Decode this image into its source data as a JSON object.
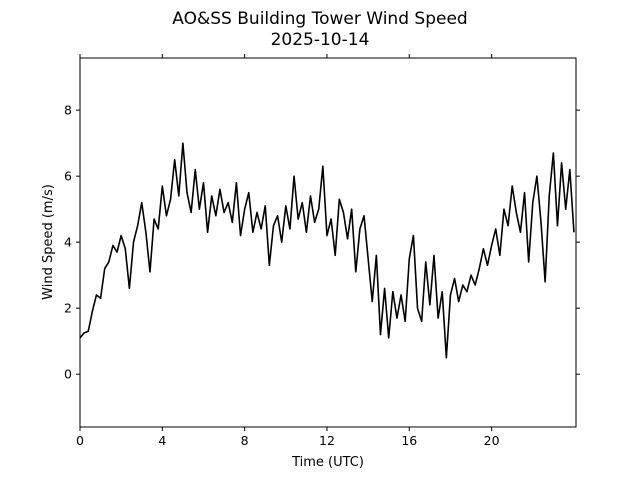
{
  "chart_data": {
    "type": "line",
    "title": "AO&SS Building Tower Wind Speed",
    "subtitle": "2025-10-14",
    "x_label": "Time (UTC)",
    "y_label": "Wind Speed (m/s)",
    "xlim": [
      0,
      24.1
    ],
    "xticks": [
      0,
      4,
      8,
      12,
      16,
      20
    ],
    "ylim": [
      -1.6,
      9.58
    ],
    "yticks": [
      0,
      2,
      4,
      6,
      8
    ],
    "grid": false,
    "x": [
      0,
      0.2,
      0.4,
      0.6,
      0.8,
      1.0,
      1.2,
      1.4,
      1.6,
      1.8,
      2.0,
      2.2,
      2.4,
      2.6,
      2.8,
      3.0,
      3.2,
      3.4,
      3.6,
      3.8,
      4.0,
      4.2,
      4.4,
      4.6,
      4.8,
      5.0,
      5.2,
      5.4,
      5.6,
      5.8,
      6.0,
      6.2,
      6.4,
      6.6,
      6.8,
      7.0,
      7.2,
      7.4,
      7.6,
      7.8,
      8.0,
      8.2,
      8.4,
      8.6,
      8.8,
      9.0,
      9.2,
      9.4,
      9.6,
      9.8,
      10.0,
      10.2,
      10.4,
      10.6,
      10.8,
      11.0,
      11.2,
      11.4,
      11.6,
      11.8,
      12.0,
      12.2,
      12.4,
      12.6,
      12.8,
      13.0,
      13.2,
      13.4,
      13.6,
      13.8,
      14.0,
      14.2,
      14.4,
      14.6,
      14.8,
      15.0,
      15.2,
      15.4,
      15.6,
      15.8,
      16.0,
      16.2,
      16.4,
      16.6,
      16.8,
      17.0,
      17.2,
      17.4,
      17.6,
      17.8,
      18.0,
      18.2,
      18.4,
      18.6,
      18.8,
      19.0,
      19.2,
      19.4,
      19.6,
      19.8,
      20.0,
      20.2,
      20.4,
      20.6,
      20.8,
      21.0,
      21.2,
      21.4,
      21.6,
      21.8,
      22.0,
      22.2,
      22.4,
      22.6,
      22.8,
      23.0,
      23.2,
      23.4,
      23.6,
      23.8,
      24.0
    ],
    "series": [
      {
        "color": "#000000",
        "values": [
          1.1,
          1.25,
          1.3,
          1.9,
          2.4,
          2.3,
          3.2,
          3.4,
          3.9,
          3.7,
          4.2,
          3.8,
          2.6,
          4.0,
          4.5,
          5.2,
          4.3,
          3.1,
          4.7,
          4.4,
          5.7,
          4.8,
          5.3,
          6.5,
          5.4,
          7.0,
          5.5,
          4.9,
          6.2,
          5.0,
          5.8,
          4.3,
          5.4,
          4.8,
          5.6,
          4.9,
          5.2,
          4.6,
          5.8,
          4.2,
          5.0,
          5.5,
          4.3,
          4.9,
          4.4,
          5.1,
          3.3,
          4.5,
          4.8,
          4.0,
          5.1,
          4.4,
          6.0,
          4.7,
          5.2,
          4.3,
          5.4,
          4.6,
          5.0,
          6.3,
          4.2,
          4.7,
          3.6,
          5.3,
          4.9,
          4.1,
          5.0,
          3.1,
          4.4,
          4.8,
          3.5,
          2.2,
          3.6,
          1.2,
          2.6,
          1.1,
          2.5,
          1.7,
          2.4,
          1.6,
          3.5,
          4.2,
          2.0,
          1.6,
          3.4,
          2.1,
          3.6,
          1.7,
          2.5,
          0.5,
          2.4,
          2.9,
          2.2,
          2.7,
          2.5,
          3.0,
          2.7,
          3.2,
          3.8,
          3.3,
          3.9,
          4.4,
          3.6,
          5.0,
          4.5,
          5.7,
          4.9,
          4.3,
          5.5,
          3.4,
          5.2,
          6.0,
          4.6,
          2.8,
          5.4,
          6.7,
          4.5,
          6.4,
          5.0,
          6.2,
          4.3
        ]
      }
    ]
  }
}
